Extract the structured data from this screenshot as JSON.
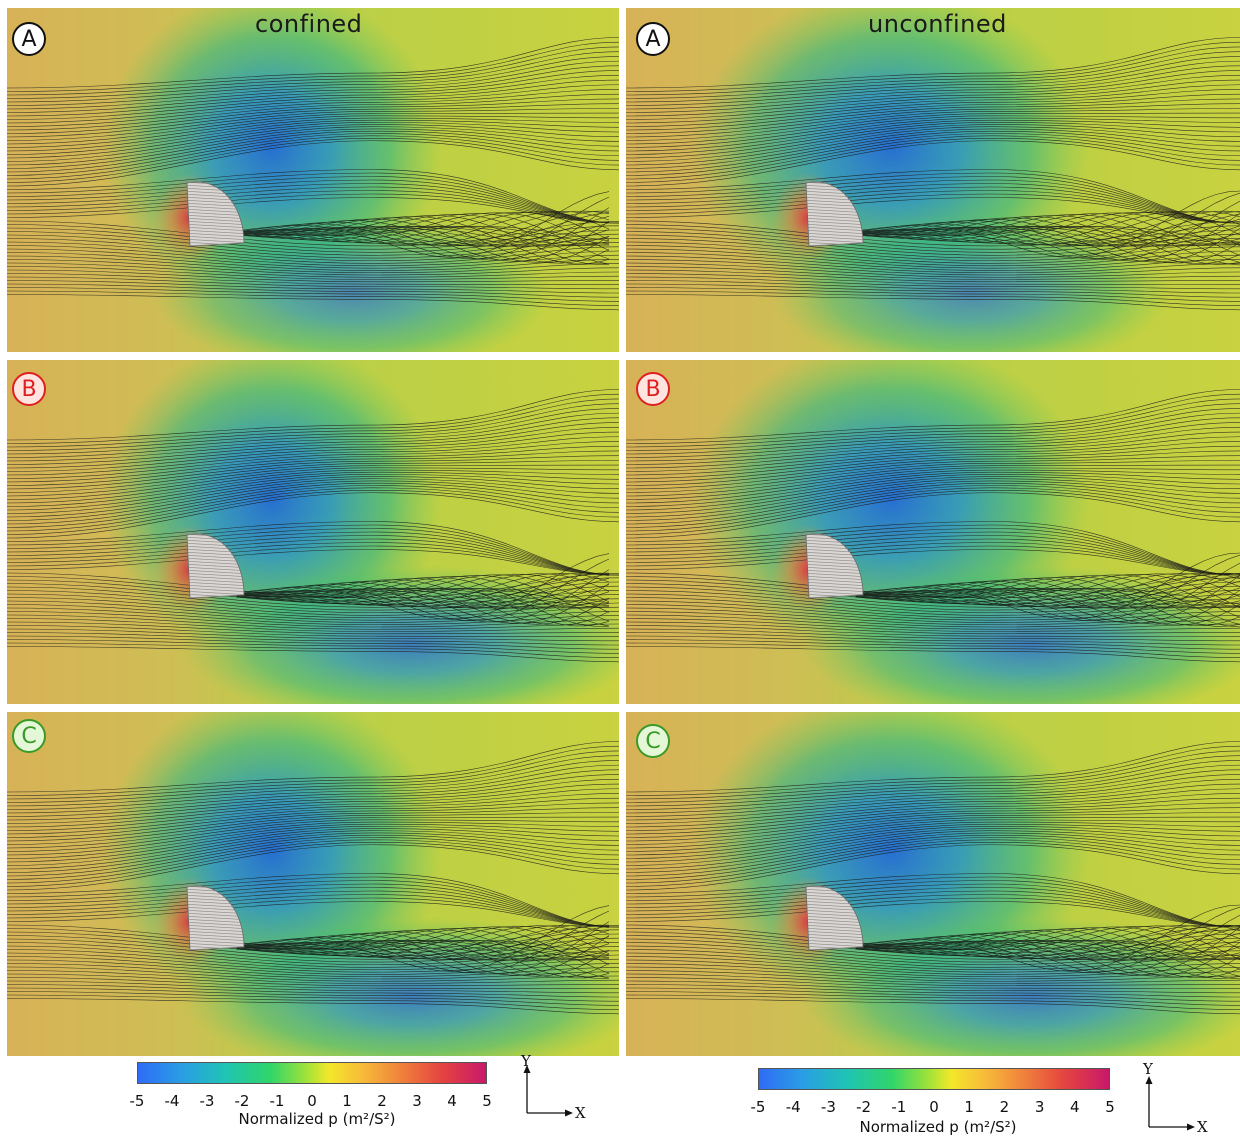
{
  "columns": [
    {
      "title": "confined"
    },
    {
      "title": "unconfined"
    }
  ],
  "rows": [
    {
      "badge": "A",
      "badge_fill": "#ffffff",
      "badge_color": "#111111",
      "badge_border": "#111111"
    },
    {
      "badge": "B",
      "badge_fill": "#ffe4e0",
      "badge_color": "#e02020",
      "badge_border": "#e02020"
    },
    {
      "badge": "C",
      "badge_fill": "#e4f8d8",
      "badge_color": "#3a9a28",
      "badge_border": "#3a9a28"
    }
  ],
  "colorbar": {
    "label": "Normalized p (m²/S²)",
    "ticks": [
      "-5",
      "-4",
      "-3",
      "-2",
      "-1",
      "0",
      "1",
      "2",
      "3",
      "4",
      "5"
    ],
    "min": -5,
    "max": 5
  },
  "axes": {
    "y_label": "Y",
    "x_label": "X"
  }
}
